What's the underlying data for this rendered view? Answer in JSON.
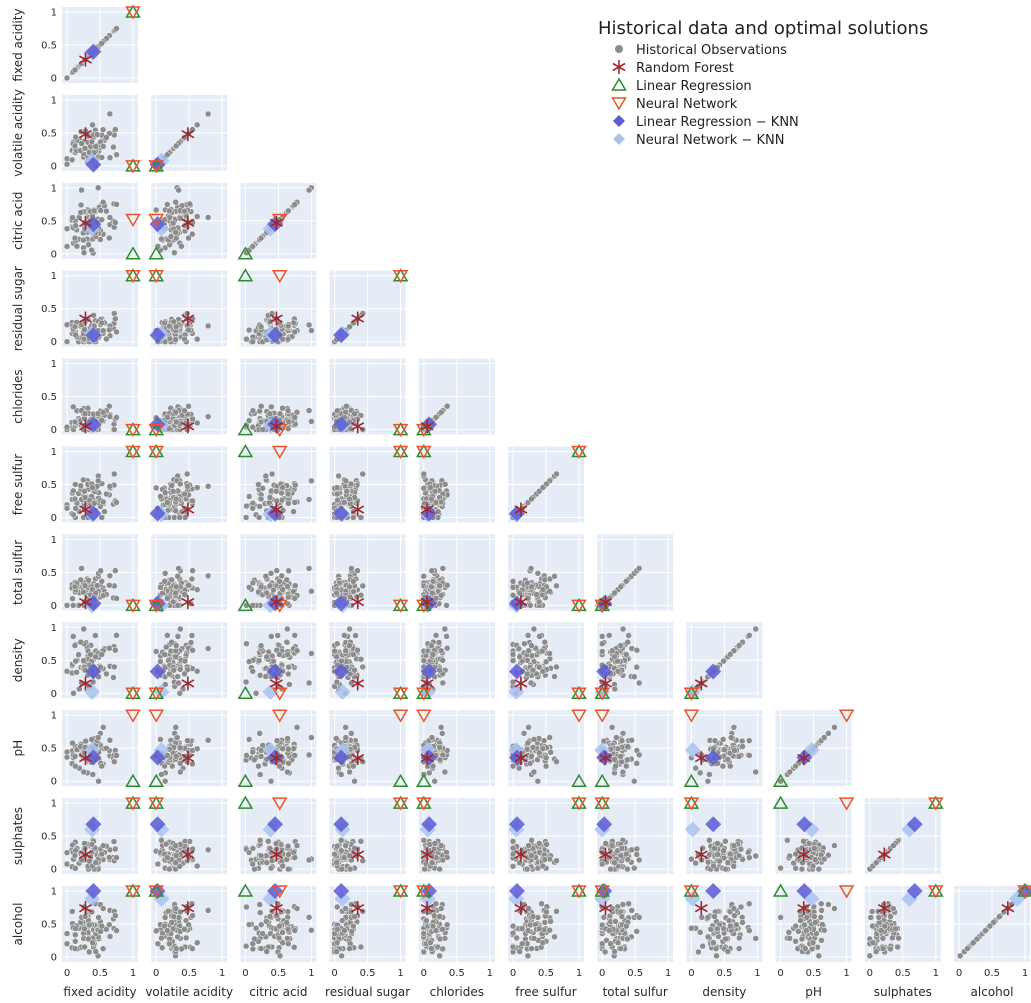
{
  "chart_data": {
    "type": "scatter",
    "subtype": "scatter-matrix (lower triangle)",
    "variables": [
      "fixed acidity",
      "volatile acidity",
      "citric acid",
      "residual sugar",
      "chlorides",
      "free sulfur",
      "total sulfur",
      "density",
      "pH",
      "sulphates",
      "alcohol"
    ],
    "axis_range": [
      0,
      1
    ],
    "y_ticks": [
      0,
      0.5,
      1
    ],
    "x_ticks": [
      0,
      0.5,
      1
    ],
    "grid": true,
    "legend": {
      "title": "Historical data and optimal solutions",
      "placement": "top-right",
      "entries": [
        {
          "label": "Historical Observations",
          "marker": "circle",
          "color": "#8c8c8c"
        },
        {
          "label": "Random Forest",
          "marker": "asterisk",
          "color": "#a0262e"
        },
        {
          "label": "Linear Regression",
          "marker": "triangle-up",
          "color": "#2e8b2e"
        },
        {
          "label": "Neural Network",
          "marker": "triangle-down",
          "color": "#e8552a"
        },
        {
          "label": "Linear Regression − KNN",
          "marker": "diamond",
          "color": "#5b5bd6"
        },
        {
          "label": "Neural Network − KNN",
          "marker": "diamond",
          "color": "#a9c3f0"
        }
      ]
    },
    "solutions": [
      {
        "name": "Random Forest",
        "values": [
          0.28,
          0.48,
          0.47,
          0.35,
          0.05,
          0.12,
          0.05,
          0.15,
          0.35,
          0.22,
          0.74
        ]
      },
      {
        "name": "Linear Regression",
        "values": [
          1,
          0,
          0,
          1,
          0,
          1,
          0,
          0,
          0,
          1,
          1
        ]
      },
      {
        "name": "Neural Network",
        "values": [
          1,
          0,
          0.52,
          1,
          0,
          1,
          0,
          0,
          1,
          1,
          1
        ]
      },
      {
        "name": "Linear Regression − KNN",
        "values": [
          0.4,
          0.02,
          0.45,
          0.1,
          0.08,
          0.06,
          0.03,
          0.33,
          0.36,
          0.68,
          1
        ]
      },
      {
        "name": "Neural Network − KNN",
        "values": [
          0.38,
          0.08,
          0.38,
          0.12,
          0.06,
          0.05,
          0.0,
          0.02,
          0.47,
          0.6,
          0.88
        ]
      }
    ],
    "historical_profile": {
      "center": [
        0.35,
        0.3,
        0.45,
        0.15,
        0.12,
        0.28,
        0.22,
        0.5,
        0.42,
        0.22,
        0.4
      ],
      "spread": [
        0.18,
        0.15,
        0.2,
        0.12,
        0.1,
        0.2,
        0.15,
        0.2,
        0.15,
        0.12,
        0.2
      ]
    }
  }
}
